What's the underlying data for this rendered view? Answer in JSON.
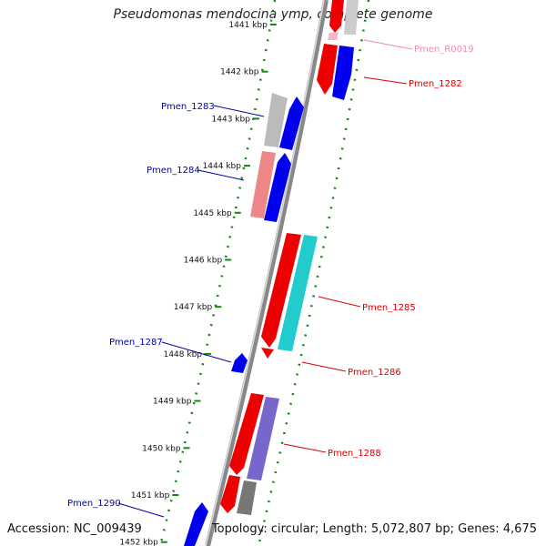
{
  "title": "Pseudomonas mendocina ymp, complete genome",
  "accession": "Accession: NC_009439",
  "summary": "Topology: circular; Length: 5,072,807 bp; Genes: 4,675",
  "ticks": [
    {
      "label": "1441 kbp",
      "kbp": 1441
    },
    {
      "label": "1442 kbp",
      "kbp": 1442
    },
    {
      "label": "1443 kbp",
      "kbp": 1443
    },
    {
      "label": "1444 kbp",
      "kbp": 1444
    },
    {
      "label": "1445 kbp",
      "kbp": 1445
    },
    {
      "label": "1446 kbp",
      "kbp": 1446
    },
    {
      "label": "1447 kbp",
      "kbp": 1447
    },
    {
      "label": "1448 kbp",
      "kbp": 1448
    },
    {
      "label": "1449 kbp",
      "kbp": 1449
    },
    {
      "label": "1450 kbp",
      "kbp": 1450
    },
    {
      "label": "1451 kbp",
      "kbp": 1451
    },
    {
      "label": "1452 kbp",
      "kbp": 1452
    }
  ],
  "labels": [
    {
      "text": "Pmen_R0019",
      "color": "#f08ab4"
    },
    {
      "text": "Pmen_1282",
      "color": "#dd0000"
    },
    {
      "text": "Pmen_1283",
      "color": "#0000aa"
    },
    {
      "text": "Pmen_1284",
      "color": "#0000aa"
    },
    {
      "text": "Pmen_1285",
      "color": "#dd0000"
    },
    {
      "text": "Pmen_1286",
      "color": "#dd0000"
    },
    {
      "text": "Pmen_1287",
      "color": "#0000aa"
    },
    {
      "text": "Pmen_1288",
      "color": "#dd0000"
    },
    {
      "text": "Pmen_1290",
      "color": "#0000aa"
    }
  ],
  "colors": {
    "gene_red": "#ee0000",
    "gene_blue": "#0000ee",
    "gene_cyan": "#22cccc",
    "gene_purple": "#7766cc",
    "gene_pink": "#ee8888",
    "gene_gray": "#bbbbbb",
    "gene_darkgray": "#777777",
    "backbone": "#888888",
    "ticks": "#118811"
  }
}
